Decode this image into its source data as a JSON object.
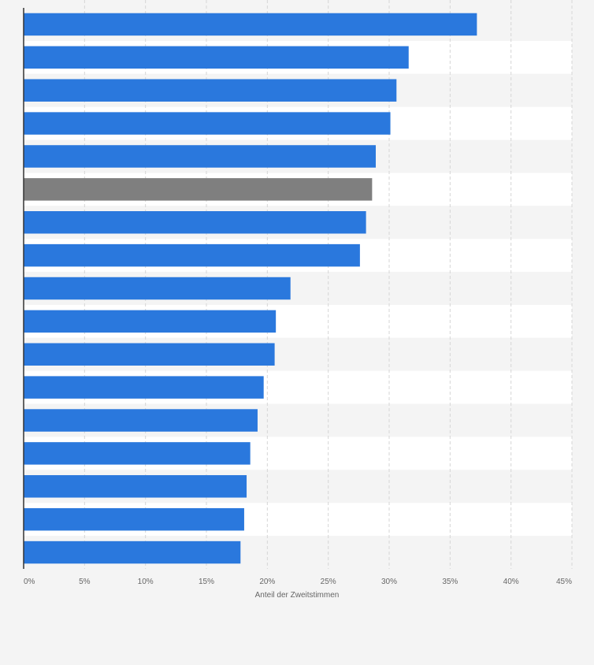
{
  "colors": {
    "bar_default": "#2a78dd",
    "bar_highlight": "#7f7f7f",
    "background": "#f4f4f4",
    "row_band_a": "#ffffff",
    "row_band_b": "#f4f4f4",
    "grid": "#d6d6d6",
    "axis": "#333333",
    "tick_text": "#666666"
  },
  "chart_data": {
    "type": "bar",
    "orientation": "horizontal",
    "title": "",
    "xlabel": "Anteil der Zweitstimmen",
    "ylabel": "",
    "xlim": [
      0,
      45
    ],
    "x_ticks": [
      0,
      5,
      10,
      15,
      20,
      25,
      30,
      35,
      40,
      45
    ],
    "x_tick_labels": [
      "0%",
      "5%",
      "10%",
      "15%",
      "20%",
      "25%",
      "30%",
      "35%",
      "40%",
      "45%"
    ],
    "category_labels_visible": false,
    "values": [
      37.2,
      31.6,
      30.6,
      30.1,
      28.9,
      28.6,
      28.1,
      27.6,
      21.9,
      20.7,
      20.6,
      19.7,
      19.2,
      18.6,
      18.3,
      18.1,
      17.8
    ],
    "highlight_indices": [
      5
    ],
    "grid": true,
    "grid_style": "dashed-vertical",
    "legend": "none"
  }
}
